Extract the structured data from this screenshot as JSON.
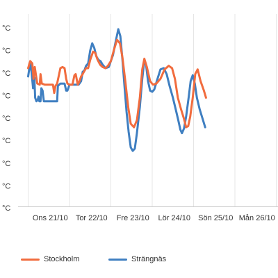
{
  "chart_data": {
    "type": "line",
    "y_ticks": [
      "°C",
      "°C",
      "°C",
      "°C",
      "°C",
      "°C",
      "°C",
      "°C",
      "°C"
    ],
    "x_ticks": [
      "Ons 21/10",
      "Tor 22/10",
      "Fre 23/10",
      "Lör 24/10",
      "Sön 25/10",
      "Mån 26/10"
    ],
    "ylim": [
      0,
      8
    ],
    "grid": {
      "vertical": true,
      "horizontal": false
    },
    "legend_position": "bottom",
    "series": [
      {
        "name": "Stockholm",
        "color": "#f16c3e",
        "points": [
          [
            0.0,
            5.85
          ],
          [
            0.05,
            6.15
          ],
          [
            0.1,
            6.05
          ],
          [
            0.13,
            5.4
          ],
          [
            0.16,
            5.9
          ],
          [
            0.22,
            5.2
          ],
          [
            0.28,
            5.15
          ],
          [
            0.3,
            5.6
          ],
          [
            0.33,
            5.2
          ],
          [
            0.4,
            5.15
          ],
          [
            0.5,
            5.15
          ],
          [
            0.6,
            5.15
          ],
          [
            0.63,
            4.8
          ],
          [
            0.66,
            5.1
          ],
          [
            0.7,
            5.2
          ],
          [
            0.75,
            5.6
          ],
          [
            0.78,
            5.85
          ],
          [
            0.83,
            5.9
          ],
          [
            0.88,
            5.85
          ],
          [
            0.92,
            5.4
          ],
          [
            0.95,
            5.2
          ],
          [
            1.0,
            5.15
          ],
          [
            1.07,
            5.15
          ],
          [
            1.12,
            5.55
          ],
          [
            1.15,
            5.6
          ],
          [
            1.2,
            5.15
          ],
          [
            1.24,
            5.3
          ],
          [
            1.28,
            5.5
          ],
          [
            1.32,
            5.6
          ],
          [
            1.35,
            5.7
          ],
          [
            1.4,
            5.85
          ],
          [
            1.45,
            5.85
          ],
          [
            1.5,
            6.2
          ],
          [
            1.57,
            6.55
          ],
          [
            1.62,
            6.5
          ],
          [
            1.68,
            6.2
          ],
          [
            1.74,
            6.0
          ],
          [
            1.8,
            5.9
          ],
          [
            1.87,
            5.85
          ],
          [
            1.93,
            5.95
          ],
          [
            2.0,
            6.15
          ],
          [
            2.07,
            6.6
          ],
          [
            2.15,
            7.05
          ],
          [
            2.22,
            6.9
          ],
          [
            2.28,
            6.3
          ],
          [
            2.35,
            5.3
          ],
          [
            2.42,
            4.2
          ],
          [
            2.48,
            3.5
          ],
          [
            2.56,
            3.35
          ],
          [
            2.63,
            3.65
          ],
          [
            2.7,
            4.6
          ],
          [
            2.76,
            5.8
          ],
          [
            2.81,
            6.25
          ],
          [
            2.87,
            5.9
          ],
          [
            2.95,
            5.3
          ],
          [
            3.02,
            5.15
          ],
          [
            3.1,
            5.2
          ],
          [
            3.2,
            5.4
          ],
          [
            3.3,
            5.8
          ],
          [
            3.4,
            5.95
          ],
          [
            3.48,
            5.85
          ],
          [
            3.55,
            5.4
          ],
          [
            3.62,
            4.6
          ],
          [
            3.7,
            4.1
          ],
          [
            3.77,
            3.7
          ],
          [
            3.82,
            3.35
          ],
          [
            3.87,
            3.4
          ],
          [
            3.92,
            3.8
          ],
          [
            3.98,
            4.6
          ],
          [
            4.04,
            5.6
          ],
          [
            4.1,
            5.8
          ],
          [
            4.17,
            5.3
          ],
          [
            4.25,
            4.9
          ],
          [
            4.3,
            4.6
          ]
        ]
      },
      {
        "name": "Strängnäs",
        "color": "#3f7fc1",
        "points": [
          [
            0.0,
            5.5
          ],
          [
            0.05,
            6.1
          ],
          [
            0.08,
            5.7
          ],
          [
            0.12,
            5.0
          ],
          [
            0.15,
            5.45
          ],
          [
            0.17,
            4.6
          ],
          [
            0.2,
            4.45
          ],
          [
            0.23,
            4.5
          ],
          [
            0.25,
            4.65
          ],
          [
            0.27,
            4.45
          ],
          [
            0.3,
            4.45
          ],
          [
            0.32,
            5.0
          ],
          [
            0.35,
            4.9
          ],
          [
            0.38,
            4.45
          ],
          [
            0.45,
            4.45
          ],
          [
            0.55,
            4.45
          ],
          [
            0.6,
            4.45
          ],
          [
            0.7,
            4.45
          ],
          [
            0.72,
            5.1
          ],
          [
            0.78,
            5.2
          ],
          [
            0.88,
            5.2
          ],
          [
            0.92,
            4.9
          ],
          [
            0.95,
            4.9
          ],
          [
            1.0,
            5.15
          ],
          [
            1.05,
            5.15
          ],
          [
            1.15,
            5.15
          ],
          [
            1.22,
            5.15
          ],
          [
            1.28,
            5.3
          ],
          [
            1.32,
            5.7
          ],
          [
            1.36,
            5.75
          ],
          [
            1.4,
            5.95
          ],
          [
            1.45,
            6.05
          ],
          [
            1.5,
            6.6
          ],
          [
            1.55,
            6.9
          ],
          [
            1.6,
            6.7
          ],
          [
            1.65,
            6.35
          ],
          [
            1.7,
            6.2
          ],
          [
            1.75,
            6.15
          ],
          [
            1.8,
            6.0
          ],
          [
            1.87,
            5.85
          ],
          [
            1.95,
            5.9
          ],
          [
            2.05,
            6.4
          ],
          [
            2.12,
            7.0
          ],
          [
            2.18,
            7.5
          ],
          [
            2.23,
            7.2
          ],
          [
            2.28,
            6.2
          ],
          [
            2.33,
            5.1
          ],
          [
            2.38,
            4.0
          ],
          [
            2.43,
            3.15
          ],
          [
            2.48,
            2.5
          ],
          [
            2.53,
            2.35
          ],
          [
            2.58,
            2.45
          ],
          [
            2.63,
            3.1
          ],
          [
            2.7,
            4.2
          ],
          [
            2.76,
            5.4
          ],
          [
            2.81,
            6.2
          ],
          [
            2.85,
            6.0
          ],
          [
            2.9,
            5.3
          ],
          [
            2.95,
            4.9
          ],
          [
            3.0,
            4.85
          ],
          [
            3.05,
            4.95
          ],
          [
            3.12,
            5.35
          ],
          [
            3.2,
            5.8
          ],
          [
            3.28,
            5.85
          ],
          [
            3.35,
            5.6
          ],
          [
            3.42,
            5.1
          ],
          [
            3.5,
            4.6
          ],
          [
            3.57,
            4.1
          ],
          [
            3.63,
            3.65
          ],
          [
            3.68,
            3.25
          ],
          [
            3.72,
            3.1
          ],
          [
            3.77,
            3.3
          ],
          [
            3.82,
            3.8
          ],
          [
            3.88,
            4.6
          ],
          [
            3.93,
            5.3
          ],
          [
            3.98,
            5.55
          ],
          [
            4.03,
            5.2
          ],
          [
            4.08,
            4.6
          ],
          [
            4.15,
            4.1
          ],
          [
            4.22,
            3.7
          ],
          [
            4.28,
            3.35
          ]
        ]
      }
    ]
  }
}
